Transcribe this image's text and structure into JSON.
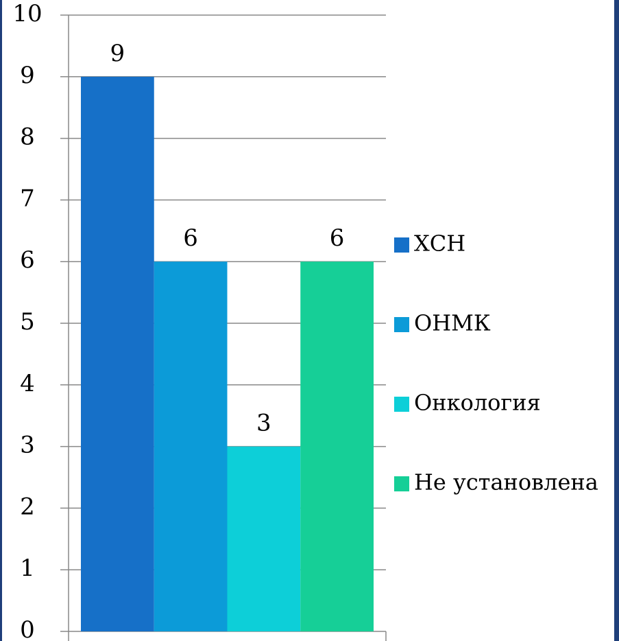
{
  "chart_data": {
    "type": "bar",
    "categories": [
      null
    ],
    "series": [
      {
        "name": "ХСН",
        "color": "#1670c8",
        "values": [
          9
        ]
      },
      {
        "name": "ОНМК",
        "color": "#0c9bd8",
        "values": [
          6
        ]
      },
      {
        "name": "Онкология",
        "color": "#0dcfd8",
        "values": [
          3
        ]
      },
      {
        "name": "Не установлена",
        "color": "#16cf97",
        "values": [
          6
        ]
      }
    ],
    "ylim": [
      0,
      10
    ],
    "yticks": [
      0,
      1,
      2,
      3,
      4,
      5,
      6,
      7,
      8,
      9,
      10
    ],
    "grid": true,
    "legend": "right"
  }
}
